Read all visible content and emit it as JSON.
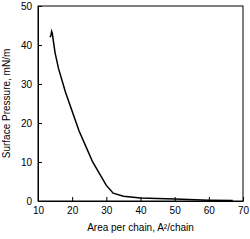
{
  "chart_data": {
    "type": "line",
    "x_label": "Area per chain, A²/chain",
    "y_label": "Surface Pressure, mN/m",
    "x": [
      67,
      60,
      50,
      40,
      35,
      32,
      30,
      28,
      26,
      24,
      22,
      20,
      18,
      16,
      15,
      14.5,
      14.2,
      14,
      13.8,
      13.5
    ],
    "values": [
      0.1,
      0.2,
      0.5,
      0.8,
      1.2,
      2,
      4,
      7,
      10,
      14,
      18,
      23,
      28,
      34,
      38,
      41,
      43,
      43.5,
      42.5,
      42
    ],
    "color": "#000000",
    "xlim": [
      10,
      70
    ],
    "xticks": [
      10,
      20,
      30,
      40,
      50,
      60,
      70
    ],
    "ylim": [
      0,
      50
    ],
    "yticks": [
      0,
      10,
      20,
      30,
      40,
      50
    ],
    "grid": false
  }
}
